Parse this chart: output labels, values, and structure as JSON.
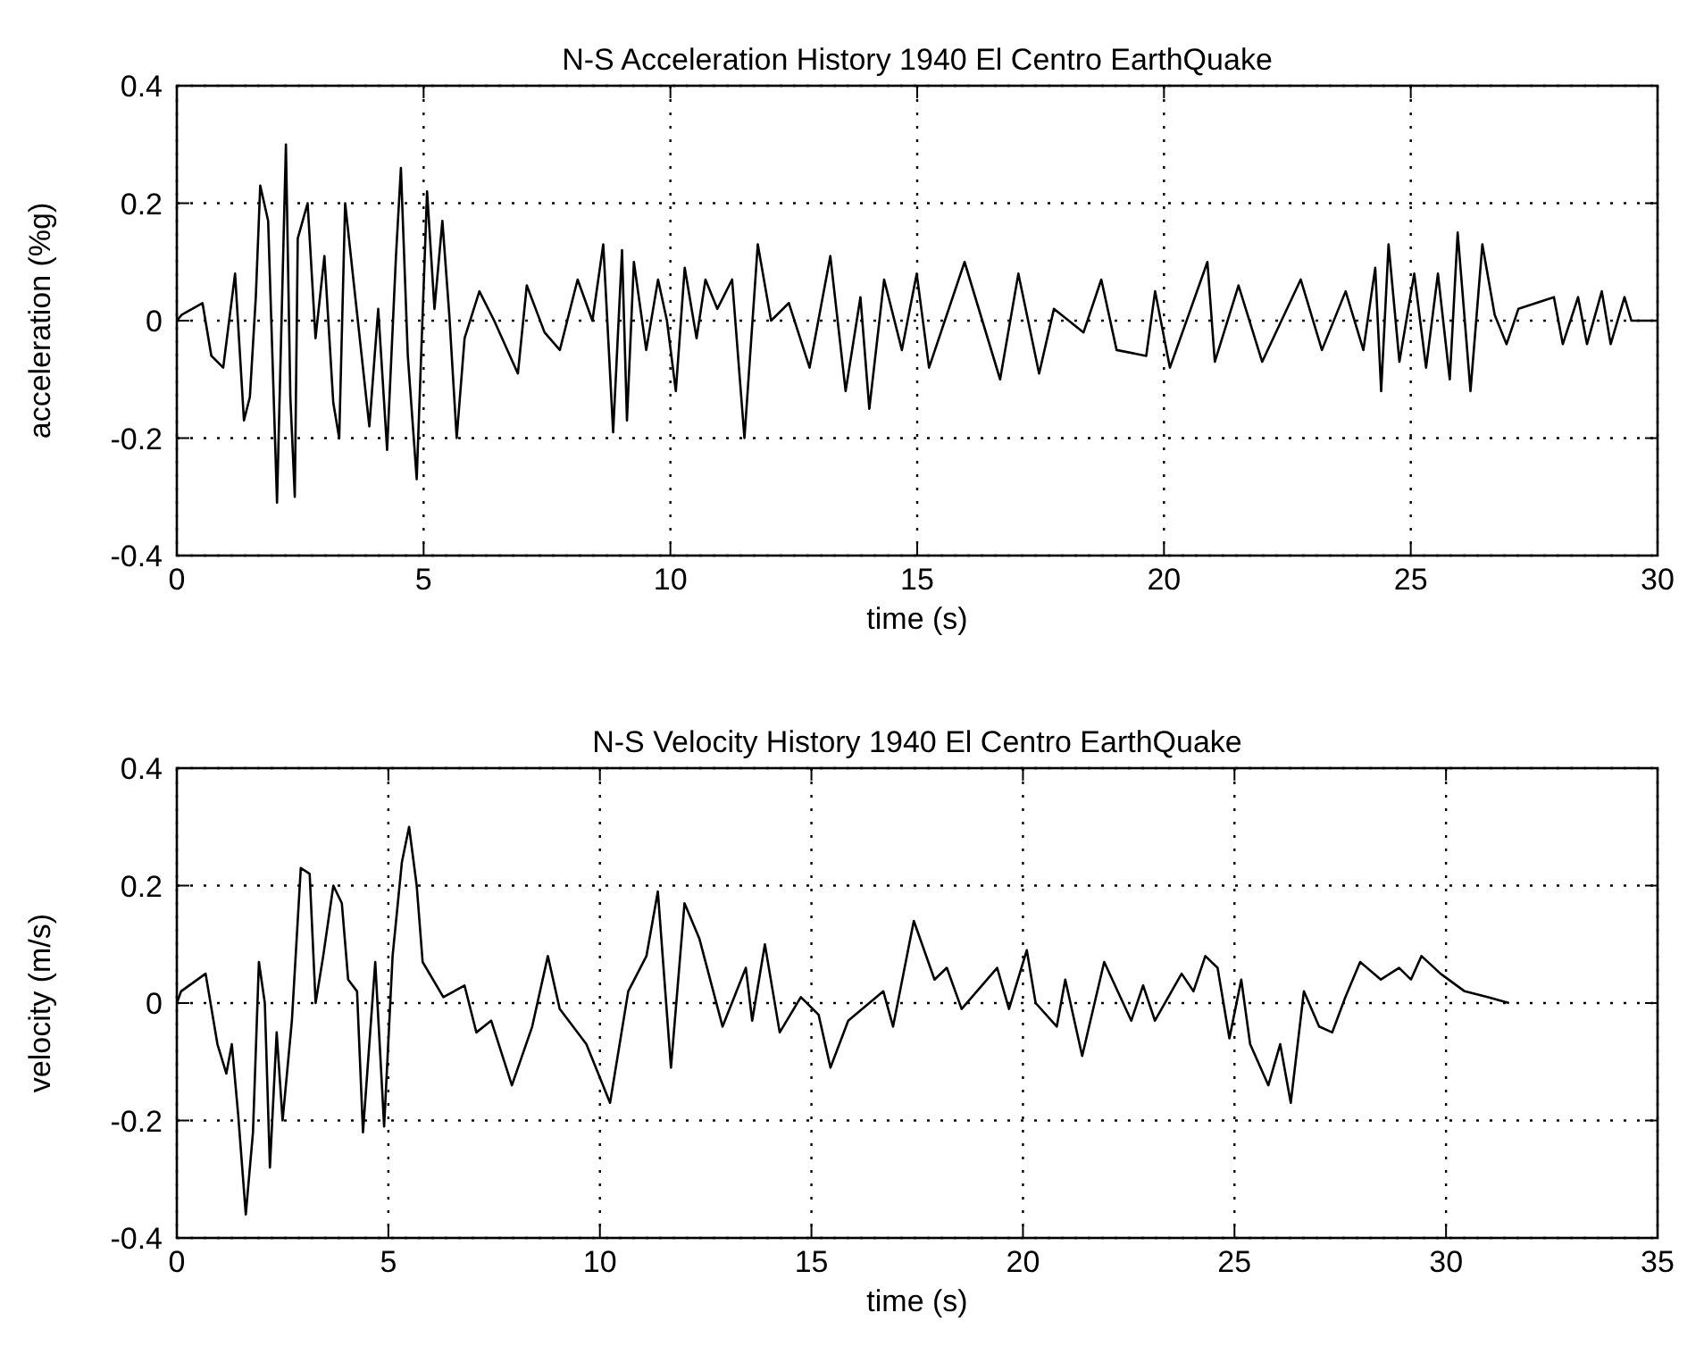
{
  "chart_data": [
    {
      "type": "line",
      "title": "N-S Acceleration History 1940 El Centro EarthQuake",
      "xlabel": "time (s)",
      "ylabel": "acceleration (%g)",
      "xlim": [
        0,
        30
      ],
      "xticks": [
        0,
        5,
        10,
        15,
        20,
        25,
        30
      ],
      "ylim": [
        -0.4,
        0.4
      ],
      "yticks": [
        -0.4,
        -0.2,
        0,
        0.2,
        0.4
      ],
      "grid": true,
      "series": [
        {
          "color": "#000000",
          "x": [
            0,
            0.1,
            0.52,
            0.7,
            0.94,
            1.18,
            1.36,
            1.48,
            1.6,
            1.69,
            1.85,
            2.03,
            2.21,
            2.3,
            2.39,
            2.45,
            2.65,
            2.81,
            2.99,
            3.17,
            3.29,
            3.41,
            3.59,
            3.9,
            4.08,
            4.26,
            4.44,
            4.54,
            4.68,
            4.86,
            5.07,
            5.22,
            5.38,
            5.52,
            5.67,
            5.83,
            6.13,
            6.43,
            6.91,
            7.09,
            7.45,
            7.76,
            8.12,
            8.42,
            8.64,
            8.84,
            9.02,
            9.12,
            9.26,
            9.51,
            9.75,
            9.93,
            10.11,
            10.29,
            10.53,
            10.71,
            10.95,
            11.25,
            11.5,
            11.77,
            12.04,
            12.4,
            12.82,
            13.24,
            13.55,
            13.85,
            14.03,
            14.33,
            14.69,
            14.99,
            15.24,
            15.96,
            16.68,
            17.05,
            17.47,
            17.77,
            18.37,
            18.73,
            19.04,
            19.64,
            19.82,
            20.12,
            20.88,
            21.03,
            21.51,
            21.99,
            22.77,
            23.2,
            23.68,
            24.04,
            24.28,
            24.4,
            24.55,
            24.77,
            25.07,
            25.31,
            25.55,
            25.79,
            25.95,
            26.21,
            26.45,
            26.7,
            26.94,
            27.18,
            27.9,
            28.08,
            28.39,
            28.57,
            28.87,
            29.05,
            29.33,
            29.47,
            30
          ],
          "values": [
            0,
            0.01,
            0.03,
            -0.06,
            -0.08,
            0.08,
            -0.17,
            -0.13,
            0.04,
            0.23,
            0.17,
            -0.31,
            0.3,
            -0.13,
            -0.3,
            0.14,
            0.2,
            -0.03,
            0.11,
            -0.14,
            -0.2,
            0.2,
            0.06,
            -0.18,
            0.02,
            -0.22,
            0.11,
            0.26,
            -0.06,
            -0.27,
            0.22,
            0.02,
            0.17,
            0.01,
            -0.2,
            -0.03,
            0.05,
            0,
            -0.09,
            0.06,
            -0.02,
            -0.05,
            0.07,
            0,
            0.13,
            -0.19,
            0.12,
            -0.17,
            0.1,
            -0.05,
            0.07,
            0,
            -0.12,
            0.09,
            -0.03,
            0.07,
            0.02,
            0.07,
            -0.2,
            0.13,
            0,
            0.03,
            -0.08,
            0.11,
            -0.12,
            0.04,
            -0.15,
            0.07,
            -0.05,
            0.08,
            -0.08,
            0.1,
            -0.1,
            0.08,
            -0.09,
            0.02,
            -0.02,
            0.07,
            -0.05,
            -0.06,
            0.05,
            -0.08,
            0.1,
            -0.07,
            0.06,
            -0.07,
            0.07,
            -0.05,
            0.05,
            -0.05,
            0.09,
            -0.12,
            0.13,
            -0.07,
            0.08,
            -0.08,
            0.08,
            -0.1,
            0.15,
            -0.12,
            0.13,
            0.01,
            -0.04,
            0.02,
            0.04,
            -0.04,
            0.04,
            -0.04,
            0.05,
            -0.04,
            0.04,
            0,
            0
          ]
        }
      ]
    },
    {
      "type": "line",
      "title": "N-S Velocity History 1940 El Centro EarthQuake",
      "xlabel": "time (s)",
      "ylabel": "velocity (m/s)",
      "xlim": [
        0,
        35
      ],
      "xticks": [
        0,
        5,
        10,
        15,
        20,
        25,
        30,
        35
      ],
      "ylim": [
        -0.4,
        0.4
      ],
      "yticks": [
        -0.4,
        -0.2,
        0,
        0.2,
        0.4
      ],
      "grid": true,
      "series": [
        {
          "color": "#000000",
          "x": [
            0,
            0.1,
            0.68,
            0.96,
            1.17,
            1.3,
            1.45,
            1.63,
            1.8,
            1.94,
            2.08,
            2.2,
            2.36,
            2.5,
            2.72,
            2.93,
            3.14,
            3.28,
            3.46,
            3.7,
            3.9,
            4.05,
            4.26,
            4.4,
            4.69,
            4.9,
            5.1,
            5.32,
            5.49,
            5.67,
            5.81,
            6.3,
            6.8,
            7.08,
            7.43,
            7.92,
            8.4,
            8.77,
            9.05,
            9.68,
            10.24,
            10.67,
            11.1,
            11.37,
            11.68,
            12.0,
            12.35,
            12.9,
            13.45,
            13.6,
            13.9,
            14.25,
            14.75,
            15.17,
            15.45,
            15.87,
            16.7,
            16.93,
            17.42,
            17.91,
            18.2,
            18.55,
            19.39,
            19.67,
            20.09,
            20.3,
            20.8,
            21.0,
            21.4,
            21.92,
            22.56,
            22.84,
            23.12,
            23.75,
            24.03,
            24.31,
            24.6,
            24.88,
            25.16,
            25.37,
            25.8,
            26.08,
            26.33,
            26.64,
            27.0,
            27.31,
            27.62,
            27.97,
            28.46,
            28.89,
            29.17,
            29.42,
            29.87,
            30.44,
            31.0,
            31.49
          ],
          "values": [
            0,
            0.02,
            0.05,
            -0.07,
            -0.12,
            -0.07,
            -0.19,
            -0.36,
            -0.22,
            0.07,
            0,
            -0.28,
            -0.05,
            -0.2,
            -0.03,
            0.23,
            0.22,
            0,
            0.08,
            0.2,
            0.17,
            0.04,
            0.02,
            -0.22,
            0.07,
            -0.21,
            0.08,
            0.24,
            0.3,
            0.2,
            0.07,
            0.01,
            0.03,
            -0.05,
            -0.03,
            -0.14,
            -0.04,
            0.08,
            -0.01,
            -0.07,
            -0.17,
            0.02,
            0.08,
            0.19,
            -0.11,
            0.17,
            0.11,
            -0.04,
            0.06,
            -0.03,
            0.1,
            -0.05,
            0.01,
            -0.02,
            -0.11,
            -0.03,
            0.02,
            -0.04,
            0.14,
            0.04,
            0.06,
            -0.01,
            0.06,
            -0.01,
            0.09,
            0,
            -0.04,
            0.04,
            -0.09,
            0.07,
            -0.03,
            0.03,
            -0.03,
            0.05,
            0.02,
            0.08,
            0.06,
            -0.06,
            0.04,
            -0.07,
            -0.14,
            -0.07,
            -0.17,
            0.02,
            -0.04,
            -0.05,
            0.01,
            0.07,
            0.04,
            0.06,
            0.04,
            0.08,
            0.05,
            0.02,
            0.01,
            0
          ]
        }
      ]
    }
  ]
}
